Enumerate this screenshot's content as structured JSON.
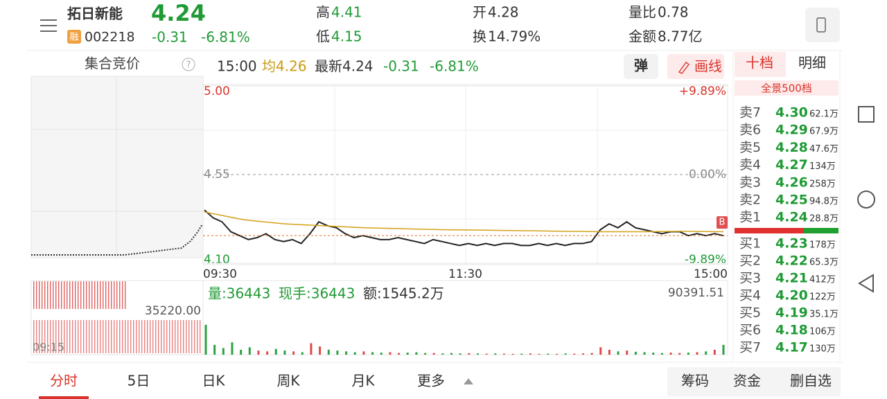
{
  "header": {
    "name": "拓日新能",
    "price": "4.24",
    "badge": "融",
    "code": "002218",
    "change": "-0.31",
    "change_pct": "-6.81%",
    "stats": [
      {
        "label": "高",
        "value": "4.41"
      },
      {
        "label": "低",
        "value": "4.15"
      },
      {
        "label": "开",
        "value": "4.28"
      },
      {
        "label": "换",
        "value": "14.79%"
      },
      {
        "label": "量比",
        "value": "0.78"
      },
      {
        "label": "金额",
        "value": "8.77亿"
      }
    ]
  },
  "toolbar": {
    "auction": "集合竞价",
    "help": "?",
    "time": "15:00",
    "avg": "均4.26",
    "latest": "最新4.24",
    "change": "-0.31",
    "change_pct": "-6.81%",
    "popup": "弹",
    "draw": "画线"
  },
  "chart_data": {
    "type": "line",
    "ylim": [
      4.1,
      5.0
    ],
    "yticks": [
      {
        "value": 4.1,
        "label": "4.10"
      },
      4.55,
      {
        "value": 5.0,
        "label": "5.00"
      }
    ],
    "pct_labels": [
      "-9.89%",
      "0.00%",
      "+9.89%"
    ],
    "x_labels": [
      "09:30",
      "11:30",
      "15:00"
    ],
    "marker": "B",
    "series": [
      {
        "color": "#222222",
        "values": [
          4.37,
          4.33,
          4.31,
          4.26,
          4.24,
          4.22,
          4.23,
          4.25,
          4.22,
          4.21,
          4.22,
          4.2,
          4.25,
          4.31,
          4.29,
          4.28,
          4.25,
          4.23,
          4.24,
          4.23,
          4.22,
          4.22,
          4.23,
          4.22,
          4.21,
          4.2,
          4.22,
          4.21,
          4.2,
          4.19,
          4.2,
          4.19,
          4.2,
          4.19,
          4.2,
          4.2,
          4.19,
          4.19,
          4.2,
          4.19,
          4.2,
          4.19,
          4.2,
          4.2,
          4.21,
          4.27,
          4.3,
          4.28,
          4.31,
          4.28,
          4.27,
          4.26,
          4.25,
          4.26,
          4.26,
          4.24,
          4.25,
          4.24,
          4.25,
          4.24
        ]
      },
      {
        "color": "#d4a017",
        "values": [
          4.36,
          4.32,
          4.3,
          4.29,
          4.28,
          4.275,
          4.27,
          4.268,
          4.265,
          4.262,
          4.26,
          4.26,
          4.262,
          4.26
        ]
      }
    ]
  },
  "volume_chart": {
    "type": "bar",
    "volume": "量:36443",
    "hand": "现手:36443",
    "amount": "额:1545.2万",
    "auction_label": "35220.00",
    "auction_time": "09:15",
    "ylim": [
      0,
      90391.51
    ],
    "yticks": [
      90391.51
    ],
    "values": [
      36443,
      12000,
      8000,
      15000,
      6000,
      9000,
      5000,
      4000,
      7000,
      5000,
      4000,
      3000,
      14000,
      10000,
      6000,
      5000,
      4000,
      3000,
      4000,
      3000,
      2500,
      3000,
      2000,
      2500,
      3000,
      2000,
      2000,
      1500,
      2000,
      1500,
      1800,
      1500,
      1200,
      1500,
      1200,
      1000,
      1200,
      1500,
      1000,
      1200,
      1000,
      1500,
      1200,
      1500,
      2000,
      9000,
      6000,
      4000,
      5000,
      3500,
      3000,
      2500,
      2000,
      2500,
      2000,
      2500,
      3000,
      4000,
      6000,
      12000
    ]
  },
  "order_book": {
    "tabs": [
      "十档",
      "明细"
    ],
    "panorama": "全景500档",
    "asks": [
      {
        "label": "卖7",
        "price": "4.30",
        "volume": "62.1万"
      },
      {
        "label": "卖6",
        "price": "4.29",
        "volume": "67.9万"
      },
      {
        "label": "卖5",
        "price": "4.28",
        "volume": "47.6万"
      },
      {
        "label": "卖4",
        "price": "4.27",
        "volume": "134万"
      },
      {
        "label": "卖3",
        "price": "4.26",
        "volume": "258万"
      },
      {
        "label": "卖2",
        "price": "4.25",
        "volume": "94.8万"
      },
      {
        "label": "卖1",
        "price": "4.24",
        "volume": "28.8万"
      }
    ],
    "bids": [
      {
        "label": "买1",
        "price": "4.23",
        "volume": "178万"
      },
      {
        "label": "买2",
        "price": "4.22",
        "volume": "65.3万"
      },
      {
        "label": "买3",
        "price": "4.21",
        "volume": "412万"
      },
      {
        "label": "买4",
        "price": "4.20",
        "volume": "122万"
      },
      {
        "label": "买5",
        "price": "4.19",
        "volume": "35.1万"
      },
      {
        "label": "买6",
        "price": "4.18",
        "volume": "106万"
      },
      {
        "label": "买7",
        "price": "4.17",
        "volume": "130万"
      }
    ]
  },
  "bottom": {
    "tabs": [
      "分时",
      "5日",
      "日K",
      "周K",
      "月K",
      "更多"
    ],
    "buttons": [
      "筹码",
      "资金",
      "删自选"
    ]
  }
}
